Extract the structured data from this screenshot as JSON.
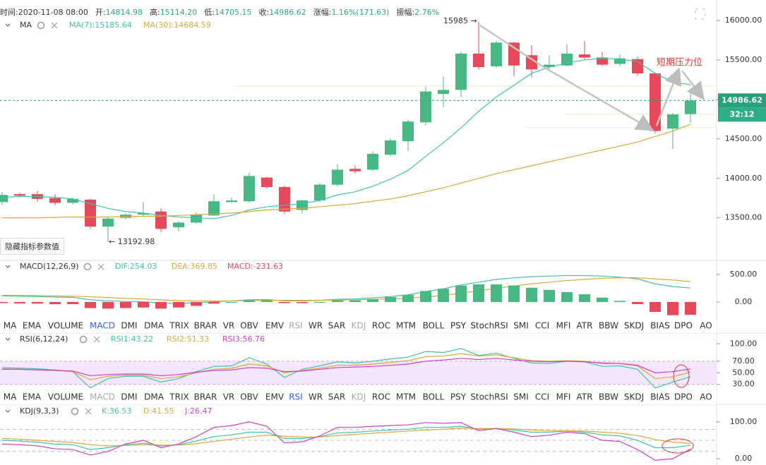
{
  "header": [
    {
      "label": "时间:",
      "value": "2020-11-08 08:00"
    },
    {
      "label": "开:",
      "value": "14814.98"
    },
    {
      "label": "高:",
      "value": "15114.20"
    },
    {
      "label": "低:",
      "value": "14705.15"
    },
    {
      "label": "收:",
      "value": "14986.62"
    },
    {
      "label": "涨幅:",
      "value": "1.16%(171.63)"
    },
    {
      "label": "振幅:",
      "value": "2.76%"
    }
  ],
  "hide_button": "隐藏指标参数值",
  "indicator_tabs": {
    "items": [
      "MA",
      "EMA",
      "VOLUME",
      "MACD",
      "DMI",
      "DMA",
      "TRIX",
      "BRAR",
      "VR",
      "OBV",
      "EMV",
      "RSI",
      "WR",
      "SAR",
      "KDJ",
      "ROC",
      "MTM",
      "BOLL",
      "PSY",
      "StochRSI",
      "SMI",
      "CCI",
      "MFI",
      "ATR",
      "BBW",
      "SKDJ",
      "BIAS",
      "DPO",
      "AO"
    ],
    "bars": [
      {
        "active": 3,
        "disabled": [
          11,
          14
        ]
      },
      {
        "active": 11,
        "disabled": [
          3,
          14
        ]
      }
    ]
  },
  "chart_data": [
    {
      "type": "candlestick",
      "title": "MA",
      "categories": [
        null,
        null,
        null,
        null,
        null,
        null,
        null,
        null,
        null,
        null,
        null,
        null,
        null,
        null,
        null,
        null,
        null,
        null,
        null,
        null,
        null,
        null,
        null,
        null,
        null,
        null,
        null,
        null,
        null,
        null,
        null,
        null,
        null,
        null,
        null,
        null,
        null,
        null,
        null,
        null
      ],
      "open": [
        13700,
        13800,
        13800,
        13750,
        13690,
        13730,
        13390,
        13500,
        13540,
        13580,
        13380,
        13440,
        13530,
        13700,
        13710,
        14010,
        13890,
        13600,
        13720,
        13920,
        14120,
        14110,
        14300,
        14470,
        14710,
        15070,
        15120,
        15580,
        15420,
        15720,
        15560,
        15410,
        15430,
        15570,
        15530,
        15450,
        15510,
        15330,
        14630,
        14814.98
      ],
      "high": [
        13830,
        13820,
        13840,
        13800,
        13760,
        13740,
        13520,
        13560,
        13700,
        13620,
        13460,
        13570,
        13800,
        13760,
        14070,
        14020,
        13910,
        13730,
        13940,
        14180,
        14160,
        14340,
        14510,
        14740,
        15160,
        15290,
        15610,
        15985,
        15740,
        15730,
        15690,
        15560,
        15700,
        15740,
        15600,
        15570,
        15540,
        15340,
        14830,
        15114.2
      ],
      "low": [
        13660,
        13760,
        13700,
        13660,
        13670,
        13360,
        13192.98,
        13480,
        13520,
        13320,
        13330,
        13420,
        13520,
        13690,
        13690,
        13870,
        13550,
        13560,
        13700,
        13900,
        14060,
        14090,
        14280,
        14350,
        14670,
        14900,
        15030,
        15380,
        15400,
        15290,
        15280,
        15380,
        15420,
        15510,
        15420,
        15420,
        15300,
        14570,
        14370,
        14705.15
      ],
      "close": [
        13790,
        13780,
        13740,
        13690,
        13740,
        13390,
        13490,
        13540,
        13560,
        13360,
        13440,
        13540,
        13710,
        13720,
        14030,
        13890,
        13580,
        13720,
        13920,
        14110,
        14090,
        14310,
        14480,
        14720,
        15100,
        15120,
        15580,
        15410,
        15720,
        15430,
        15380,
        15440,
        15580,
        15530,
        15440,
        15520,
        15330,
        14600,
        14810,
        14986.62
      ],
      "up_color": "#47b883",
      "down_color": "#e5495a",
      "series": [
        {
          "name": "MA(7):15185.64",
          "color": "#40c2ac",
          "values": [
            13760,
            13770,
            13770,
            13760,
            13740,
            13680,
            13620,
            13580,
            13560,
            13530,
            13510,
            13500,
            13490,
            13530,
            13600,
            13640,
            13660,
            13680,
            13720,
            13790,
            13830,
            13900,
            13990,
            14100,
            14280,
            14450,
            14640,
            14850,
            15030,
            15180,
            15330,
            15410,
            15460,
            15500,
            15520,
            15510,
            15480,
            15330,
            15220,
            15185.64
          ]
        },
        {
          "name": "MA(30):14684.59",
          "color": "#d9a93a",
          "values": [
            13500,
            13500,
            13500,
            13505,
            13510,
            13510,
            13510,
            13515,
            13520,
            13520,
            13530,
            13540,
            13550,
            13560,
            13580,
            13600,
            13610,
            13620,
            13640,
            13660,
            13680,
            13710,
            13740,
            13780,
            13830,
            13880,
            13940,
            14000,
            14060,
            14110,
            14160,
            14210,
            14260,
            14310,
            14360,
            14410,
            14460,
            14530,
            14600,
            14684.59
          ]
        }
      ],
      "ylim": [
        12970,
        16170
      ],
      "yticks": [
        {
          "value": 13500,
          "label": "13500.00"
        },
        {
          "value": 14000,
          "label": "14000.00"
        },
        {
          "value": 14500,
          "label": "14500.00"
        },
        {
          "value": 15000,
          "label": "15000.00"
        },
        {
          "value": 15500,
          "label": "15500.00"
        },
        {
          "value": 16000,
          "label": "16000.00"
        }
      ],
      "last_price": 14986.62,
      "countdown": "32:12",
      "annotations": [
        "15985 →",
        "← 13192.98",
        "短期压力位"
      ]
    },
    {
      "type": "line",
      "title": "MACD(12,26,9)",
      "series": [
        {
          "name": "DIF:254.03",
          "color": "#40c2ac",
          "values": [
            110,
            105,
            100,
            90,
            85,
            40,
            20,
            10,
            5,
            -20,
            -25,
            -15,
            5,
            20,
            40,
            45,
            20,
            20,
            30,
            50,
            55,
            75,
            100,
            130,
            190,
            240,
            310,
            360,
            410,
            440,
            460,
            470,
            480,
            480,
            470,
            450,
            420,
            330,
            280,
            254.03
          ]
        },
        {
          "name": "DEA:369.85",
          "color": "#d9a93a",
          "values": [
            120,
            118,
            115,
            110,
            105,
            95,
            80,
            65,
            55,
            40,
            25,
            20,
            20,
            20,
            25,
            30,
            30,
            30,
            30,
            35,
            40,
            50,
            55,
            65,
            90,
            120,
            160,
            200,
            250,
            290,
            330,
            360,
            390,
            410,
            430,
            440,
            440,
            420,
            400,
            369.85
          ]
        },
        {
          "name": "MACD:-231.63",
          "kind": "bar",
          "color": "#e5495a",
          "up_color": "#47b883",
          "values": [
            -20,
            -26,
            -30,
            -40,
            -40,
            -110,
            -120,
            -110,
            -100,
            -120,
            -100,
            -70,
            -30,
            0,
            30,
            30,
            -20,
            -20,
            0,
            30,
            30,
            50,
            90,
            130,
            200,
            240,
            300,
            320,
            320,
            300,
            260,
            220,
            180,
            140,
            80,
            20,
            -40,
            -180,
            -240,
            -231.63
          ]
        }
      ],
      "ylim": [
        -308,
        718
      ],
      "yticks": [
        {
          "value": 0,
          "label": "0.00"
        },
        {
          "value": 500,
          "label": "500.00"
        }
      ]
    },
    {
      "type": "line",
      "title": "RSI(6,12,24)",
      "series": [
        {
          "name": "RSI1:43.22",
          "color": "#40c2ac",
          "values": [
            59,
            58,
            57,
            55,
            52,
            24,
            40,
            44,
            44,
            34,
            40,
            52,
            61,
            62,
            76,
            65,
            42,
            56,
            62,
            69,
            67,
            70,
            74,
            77,
            87,
            85,
            92,
            80,
            84,
            75,
            67,
            66,
            70,
            69,
            61,
            62,
            56,
            24,
            34,
            43.22
          ]
        },
        {
          "name": "RSI2:51.33",
          "color": "#d9a93a",
          "values": [
            57,
            56,
            55,
            54,
            52,
            38,
            44,
            46,
            46,
            40,
            43,
            50,
            56,
            58,
            65,
            62,
            50,
            54,
            58,
            63,
            63,
            65,
            68,
            71,
            78,
            79,
            83,
            79,
            81,
            76,
            71,
            70,
            71,
            70,
            66,
            66,
            62,
            40,
            43,
            51.33
          ]
        },
        {
          "name": "RSI3:56.76",
          "color": "#d040c8",
          "values": [
            56,
            56,
            55,
            54,
            53,
            45,
            47,
            48,
            48,
            45,
            47,
            51,
            54,
            55,
            59,
            58,
            52,
            53,
            56,
            59,
            60,
            61,
            63,
            65,
            70,
            72,
            75,
            73,
            75,
            72,
            70,
            69,
            70,
            69,
            67,
            66,
            63,
            50,
            52,
            56.76
          ]
        }
      ],
      "ylim": [
        17.5,
        115
      ],
      "yticks": [
        {
          "value": 30,
          "label": "30.00"
        },
        {
          "value": 50,
          "label": "50.00"
        },
        {
          "value": 70,
          "label": "70.00"
        },
        {
          "value": 100,
          "label": "100.00"
        }
      ],
      "band": [
        30,
        70
      ],
      "band_color": "#f4e6fb"
    },
    {
      "type": "line",
      "title": "KDJ(9,3,3)",
      "series": [
        {
          "name": "K:36.53",
          "color": "#40c2ac",
          "values": [
            50,
            48,
            45,
            40,
            38,
            25,
            30,
            38,
            42,
            35,
            38,
            48,
            60,
            65,
            72,
            72,
            55,
            55,
            60,
            70,
            72,
            75,
            78,
            80,
            85,
            85,
            88,
            80,
            82,
            78,
            72,
            72,
            75,
            72,
            65,
            62,
            50,
            30,
            30,
            36.53
          ]
        },
        {
          "name": "D:41.55",
          "color": "#d9a93a",
          "values": [
            55,
            53,
            50,
            47,
            44,
            38,
            35,
            36,
            38,
            37,
            37,
            41,
            47,
            53,
            59,
            64,
            61,
            59,
            59,
            63,
            66,
            69,
            72,
            75,
            78,
            80,
            83,
            82,
            82,
            81,
            78,
            76,
            76,
            75,
            72,
            69,
            63,
            52,
            45,
            41.55
          ]
        },
        {
          "name": "J:26.47",
          "color": "#d040c8",
          "values": [
            40,
            38,
            35,
            27,
            25,
            10,
            20,
            40,
            50,
            30,
            40,
            60,
            85,
            90,
            100,
            88,
            43,
            46,
            62,
            85,
            85,
            88,
            90,
            92,
            98,
            96,
            98,
            76,
            82,
            72,
            60,
            64,
            72,
            68,
            50,
            47,
            25,
            -4,
            0,
            26.47
          ]
        }
      ],
      "ylim": [
        -15,
        138
      ],
      "yticks": [
        {
          "value": 0,
          "label": "0.00"
        },
        {
          "value": 100,
          "label": "100.00"
        }
      ],
      "ref_lines": [
        20,
        50,
        80
      ]
    }
  ]
}
